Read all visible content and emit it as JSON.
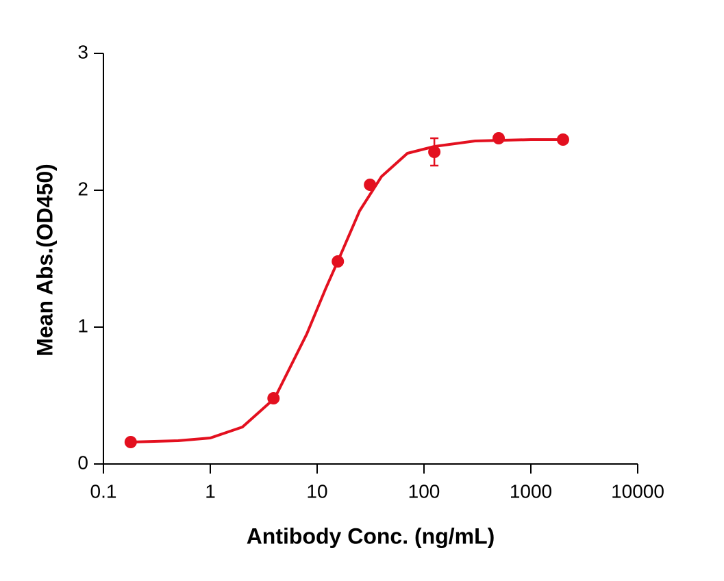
{
  "chart_data": {
    "type": "scatter",
    "x_label": "Antibody Conc. (ng/mL)",
    "y_label": "Mean Abs.(OD450)",
    "xscale": "log",
    "xlim": [
      0.1,
      10000
    ],
    "xticks": [
      0.1,
      1,
      10,
      100,
      1000,
      10000
    ],
    "ylim": [
      0,
      3
    ],
    "yticks": [
      0,
      1,
      2,
      3
    ],
    "color": "#e3101f",
    "x": [
      0.18,
      3.906,
      15.625,
      31.25,
      125,
      500,
      2000
    ],
    "values": [
      0.16,
      0.48,
      1.48,
      2.04,
      2.28,
      2.38,
      2.37
    ],
    "errors": [
      null,
      null,
      null,
      null,
      0.1,
      null,
      null
    ],
    "fit": {
      "x": [
        0.18,
        0.5,
        1,
        2,
        4,
        8,
        12,
        16,
        25,
        40,
        70,
        125,
        300,
        1000,
        2000
      ],
      "values": [
        0.16,
        0.17,
        0.19,
        0.27,
        0.48,
        0.95,
        1.28,
        1.5,
        1.85,
        2.1,
        2.27,
        2.32,
        2.36,
        2.37,
        2.37
      ]
    }
  }
}
